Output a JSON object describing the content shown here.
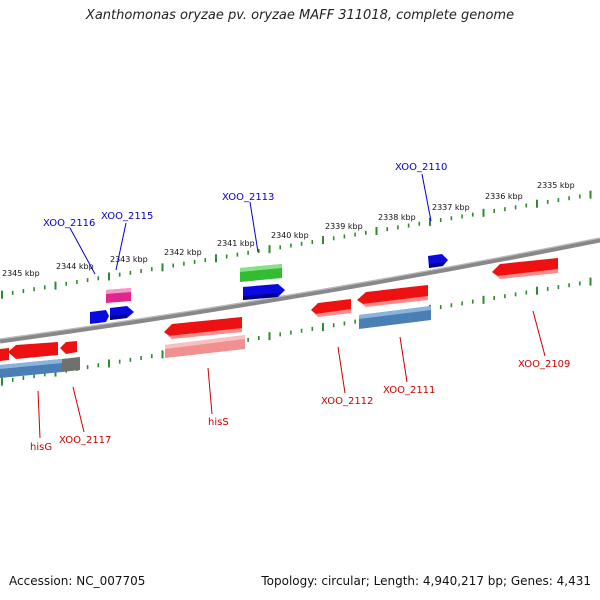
{
  "title": "Xanthomonas oryzae pv. oryzae MAFF 311018, complete genome",
  "footer": {
    "accession": "Accession: NC_007705",
    "stats": "Topology: circular; Length: 4,940,217 bp; Genes: 4,431"
  },
  "colors": {
    "background": "#ffffff",
    "backbone": "#888888",
    "tick": "#2f8a2f",
    "label_forward": "#0000cc",
    "label_reverse": "#cc0000",
    "gene_red": "#ee1111",
    "gene_pink": "#f09090",
    "gene_blue": "#0a0ae0",
    "gene_steelblue": "#4a7fb5",
    "gene_green": "#33bb33",
    "gene_magenta": "#e0288c",
    "gene_gray": "#707070"
  },
  "scale_labels": [
    "2335 kbp",
    "2336 kbp",
    "2337 kbp",
    "2338 kbp",
    "2339 kbp",
    "2340 kbp",
    "2341 kbp",
    "2342 kbp",
    "2343 kbp",
    "2344 kbp",
    "2345 kbp"
  ],
  "gene_labels": {
    "forward": [
      "XOO_2110",
      "XOO_2113",
      "XOO_2115",
      "XOO_2116"
    ],
    "reverse": [
      "XOO_2109",
      "XOO_2111",
      "XOO_2112",
      "hisS",
      "XOO_2117",
      "hisG"
    ]
  }
}
